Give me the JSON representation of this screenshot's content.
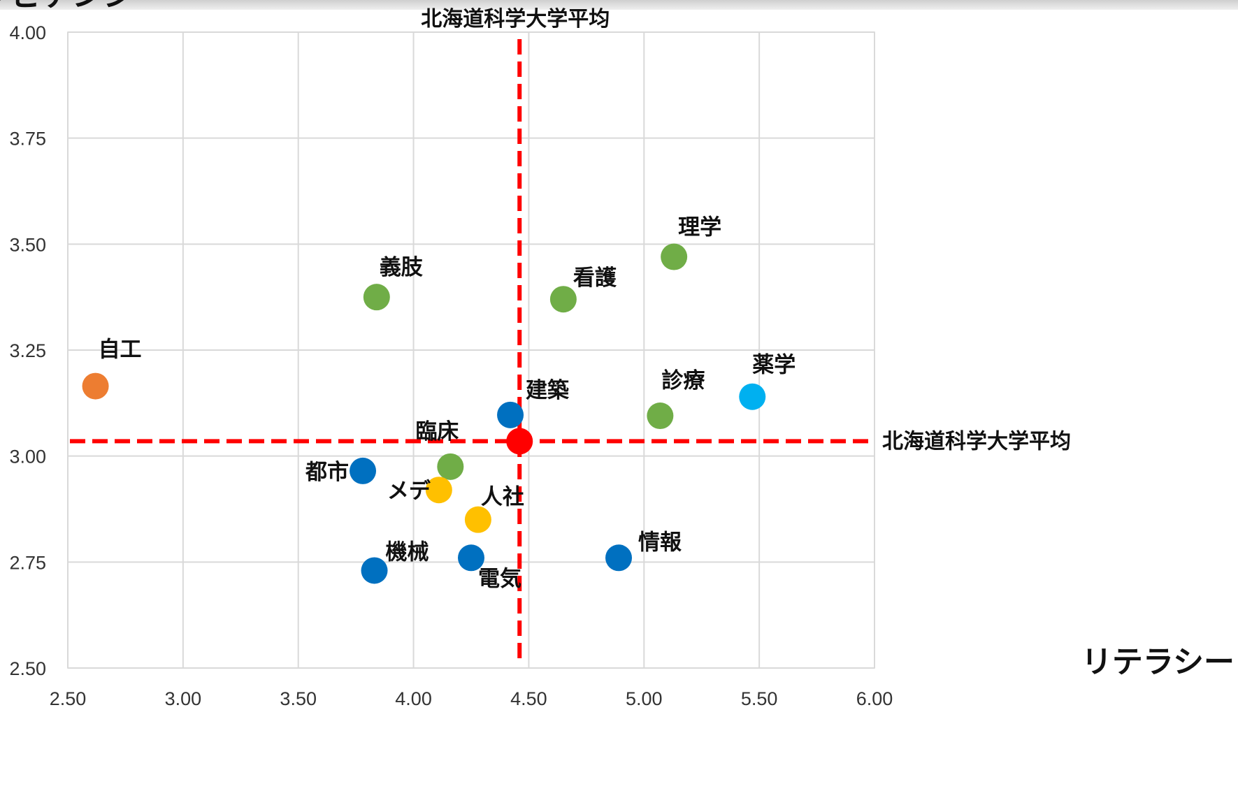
{
  "chart_data": {
    "type": "scatter",
    "xlabel": "リテラシー",
    "ylabel": "コンピテンシー",
    "xlim": [
      2.5,
      6.0
    ],
    "ylim": [
      2.5,
      4.0
    ],
    "x_ticks": [
      "2.50",
      "3.00",
      "3.50",
      "4.00",
      "4.50",
      "5.00",
      "5.50",
      "6.00"
    ],
    "y_ticks": [
      "2.50",
      "2.75",
      "3.00",
      "3.25",
      "3.50",
      "3.75",
      "4.00"
    ],
    "grid": true,
    "average": {
      "label": "北海道科学大学平均",
      "x": 4.46,
      "y": 3.035,
      "color": "#ff0000"
    },
    "points": [
      {
        "label": "自工",
        "x": 2.62,
        "y": 3.165,
        "color": "#ed7d31"
      },
      {
        "label": "義肢",
        "x": 3.84,
        "y": 3.375,
        "color": "#70ad47"
      },
      {
        "label": "看護",
        "x": 4.65,
        "y": 3.37,
        "color": "#70ad47"
      },
      {
        "label": "理学",
        "x": 5.13,
        "y": 3.47,
        "color": "#70ad47"
      },
      {
        "label": "診療",
        "x": 5.07,
        "y": 3.095,
        "color": "#70ad47"
      },
      {
        "label": "薬学",
        "x": 5.47,
        "y": 3.14,
        "color": "#00b0f0"
      },
      {
        "label": "建築",
        "x": 4.42,
        "y": 3.097,
        "color": "#0070c0"
      },
      {
        "label": "臨床",
        "x": 4.16,
        "y": 2.975,
        "color": "#70ad47"
      },
      {
        "label": "都市",
        "x": 3.78,
        "y": 2.965,
        "color": "#0070c0"
      },
      {
        "label": "メデ",
        "x": 4.11,
        "y": 2.92,
        "color": "#ffc000"
      },
      {
        "label": "人社",
        "x": 4.28,
        "y": 2.85,
        "color": "#ffc000"
      },
      {
        "label": "機械",
        "x": 3.83,
        "y": 2.73,
        "color": "#0070c0"
      },
      {
        "label": "電気",
        "x": 4.25,
        "y": 2.76,
        "color": "#0070c0"
      },
      {
        "label": "情報",
        "x": 4.89,
        "y": 2.76,
        "color": "#0070c0"
      }
    ]
  }
}
